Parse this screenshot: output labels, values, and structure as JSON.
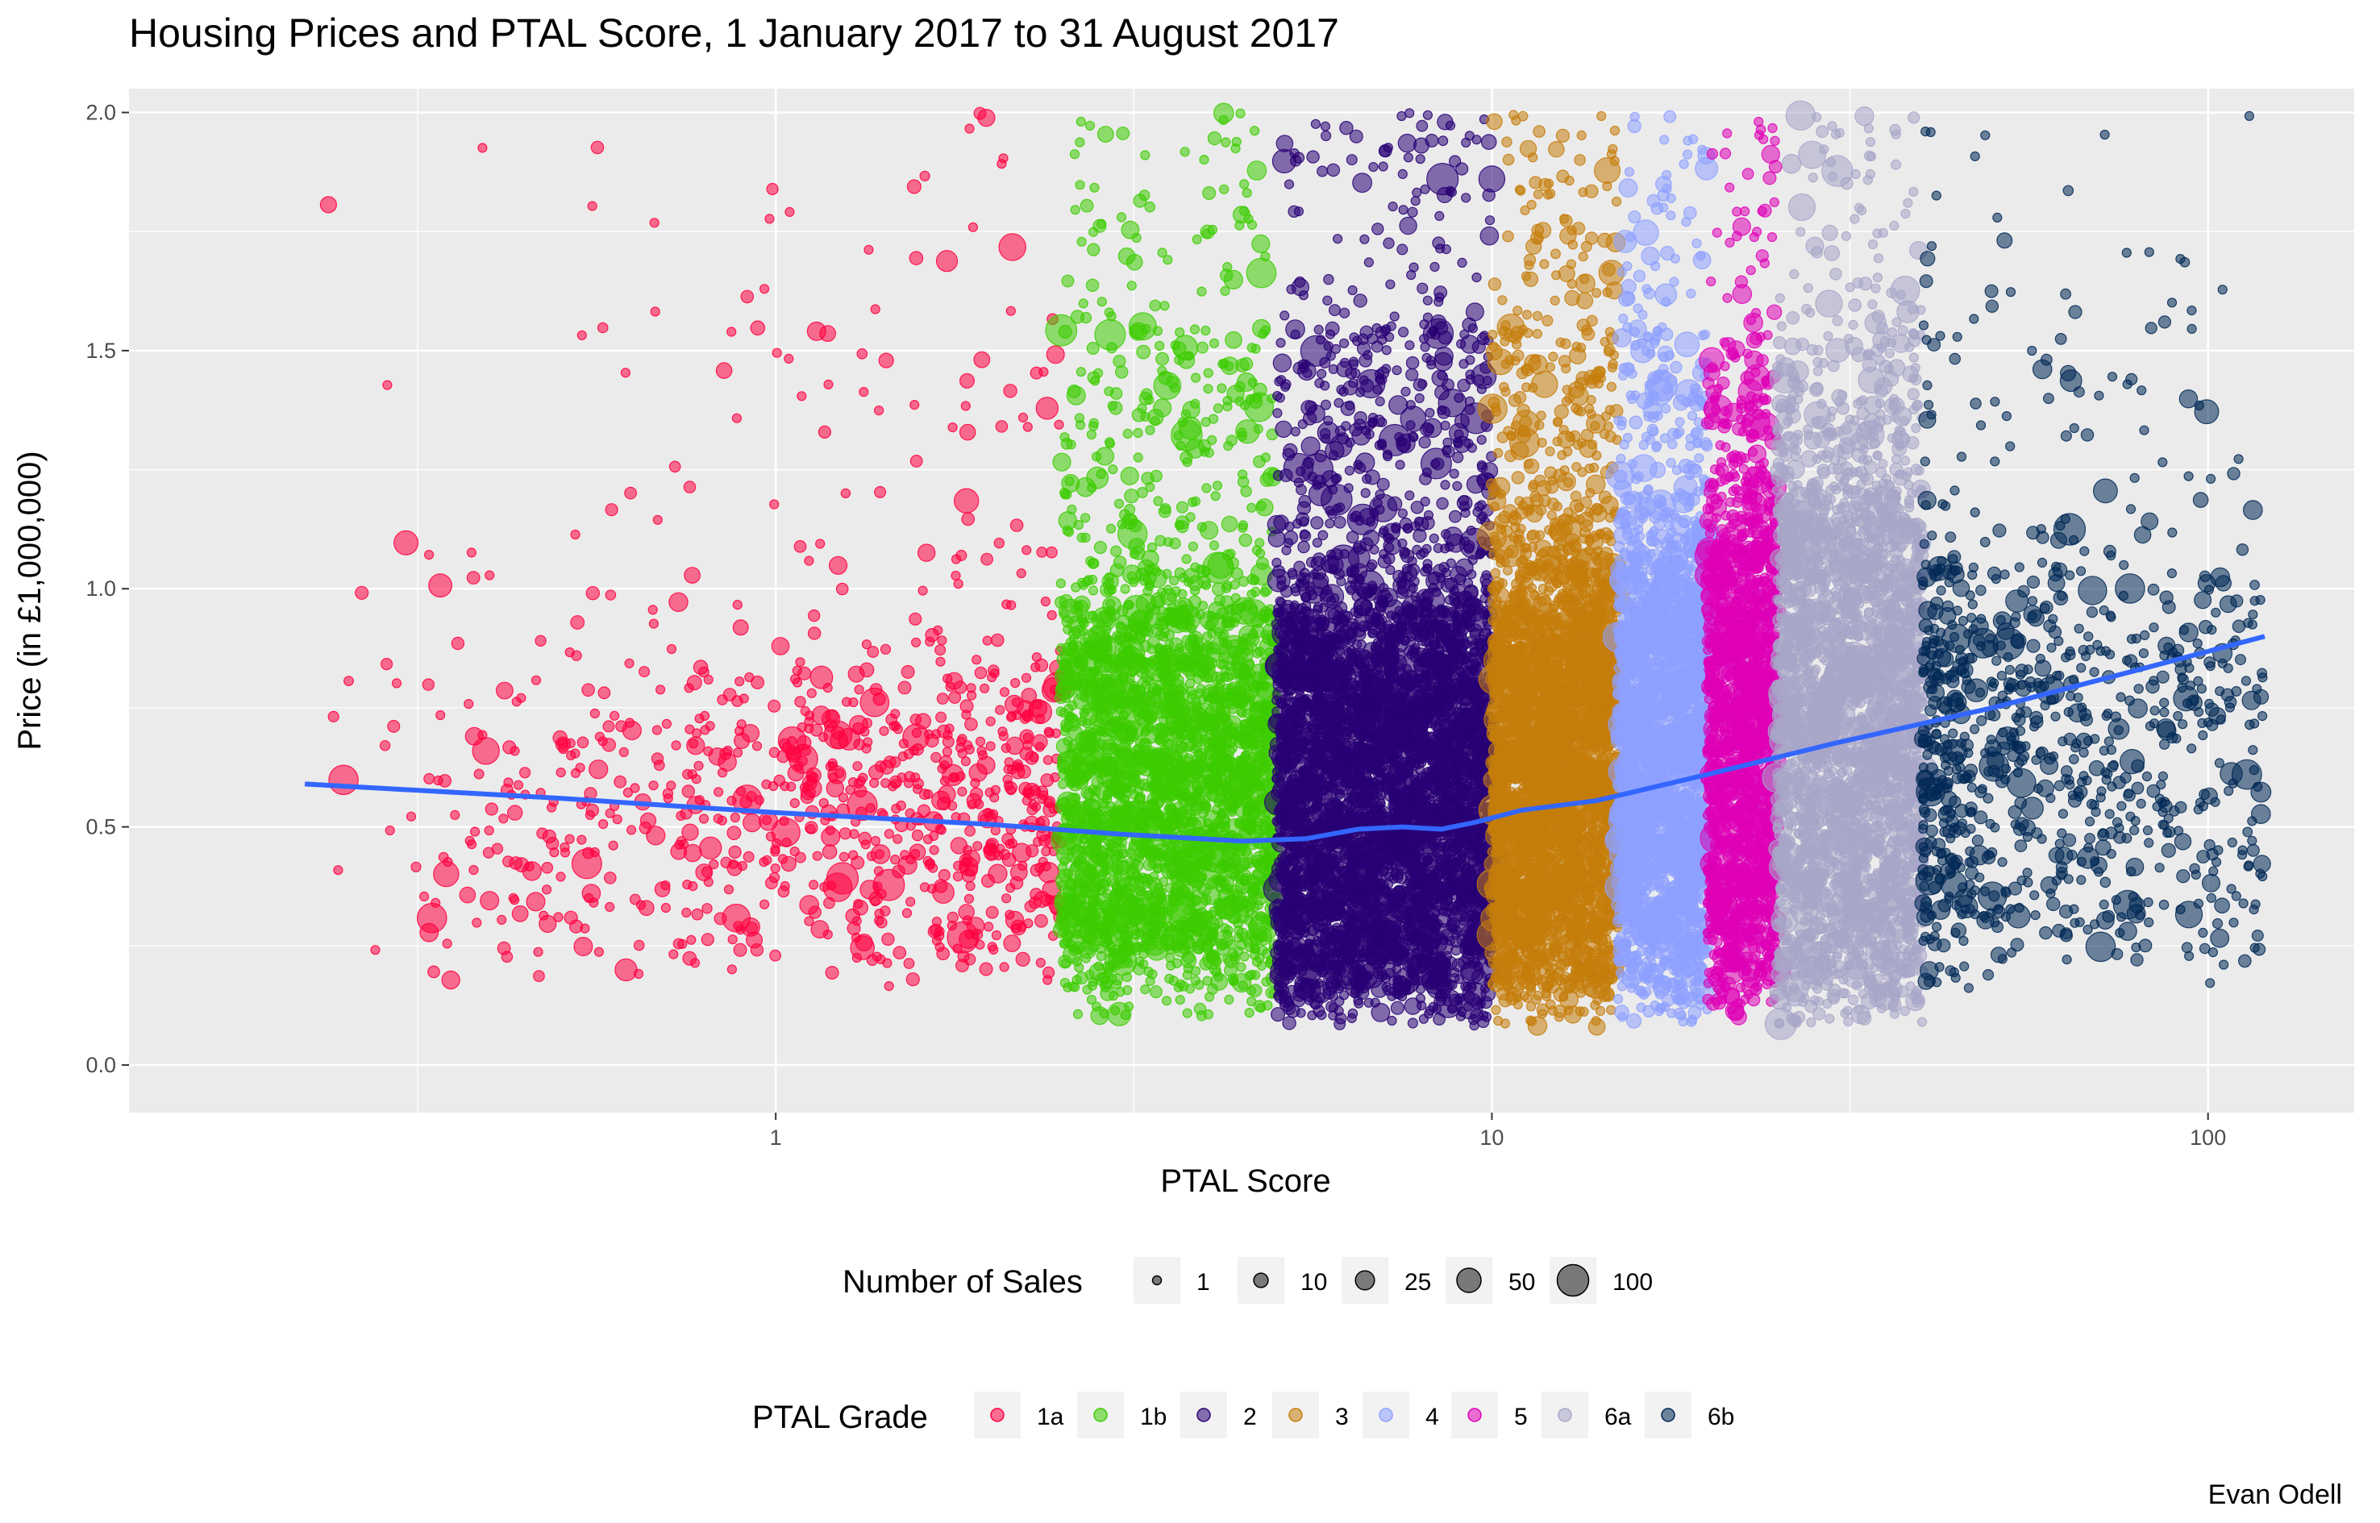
{
  "chart_data": {
    "type": "scatter",
    "title": "Housing Prices and PTAL Score, 1 January 2017 to 31 August 2017",
    "xlabel": "PTAL Score",
    "ylabel": "Price (in £1,000,000)",
    "caption": "Evan Odell",
    "x_scale": "log10",
    "xlim": [
      0.125,
      160
    ],
    "ylim": [
      -0.1,
      2.05
    ],
    "x_ticks": [
      1,
      10,
      100
    ],
    "x_tick_labels": [
      "1",
      "10",
      "100"
    ],
    "y_ticks": [
      0,
      0.5,
      1,
      1.5,
      2
    ],
    "y_tick_labels": [
      "0.0",
      "0.5",
      "1.0",
      "1.5",
      "2.0"
    ],
    "grid": true,
    "legend_position": "bottom",
    "size_legend": {
      "title": "Number of Sales",
      "items": [
        {
          "label": "1",
          "value": 1
        },
        {
          "label": "10",
          "value": 10
        },
        {
          "label": "25",
          "value": 25
        },
        {
          "label": "50",
          "value": 50
        },
        {
          "label": "100",
          "value": 100
        }
      ]
    },
    "color_legend": {
      "title": "PTAL Grade",
      "items": [
        {
          "label": "1a",
          "color": "#ff0040"
        },
        {
          "label": "1b",
          "color": "#3ccc00"
        },
        {
          "label": "2",
          "color": "#280075"
        },
        {
          "label": "3",
          "color": "#c57d0b"
        },
        {
          "label": "4",
          "color": "#8ea0ff"
        },
        {
          "label": "5",
          "color": "#df00b7"
        },
        {
          "label": "6a",
          "color": "#a8a6c8"
        },
        {
          "label": "6b",
          "color": "#002855"
        }
      ]
    },
    "series": [
      {
        "name": "1a",
        "x_range": [
          0.22,
          2.5
        ],
        "color": "#ff0040",
        "approx_points": 900,
        "y_core": [
          0.15,
          0.85
        ]
      },
      {
        "name": "1b",
        "x_range": [
          2.5,
          5.0
        ],
        "color": "#3ccc00",
        "approx_points": 2600,
        "y_core": [
          0.1,
          1.05
        ]
      },
      {
        "name": "2",
        "x_range": [
          5.0,
          10.0
        ],
        "color": "#280075",
        "approx_points": 4200,
        "y_core": [
          0.08,
          1.05
        ]
      },
      {
        "name": "3",
        "x_range": [
          10.0,
          15.0
        ],
        "color": "#c57d0b",
        "approx_points": 3000,
        "y_core": [
          0.08,
          1.1
        ]
      },
      {
        "name": "4",
        "x_range": [
          15.0,
          20.0
        ],
        "color": "#8ea0ff",
        "approx_points": 2200,
        "y_core": [
          0.08,
          1.2
        ]
      },
      {
        "name": "5",
        "x_range": [
          20.0,
          25.0
        ],
        "color": "#df00b7",
        "approx_points": 1600,
        "y_core": [
          0.1,
          1.3
        ]
      },
      {
        "name": "6a",
        "x_range": [
          25.0,
          40.0
        ],
        "color": "#a8a6c8",
        "approx_points": 2600,
        "y_core": [
          0.08,
          1.4
        ]
      },
      {
        "name": "6b",
        "x_range": [
          40.0,
          120.0
        ],
        "color": "#002855",
        "approx_points": 900,
        "y_core": [
          0.15,
          1.1
        ]
      }
    ],
    "smooth_line": {
      "color": "#3366ff",
      "points": [
        [
          0.22,
          0.59
        ],
        [
          0.5,
          0.56
        ],
        [
          1.0,
          0.53
        ],
        [
          2.0,
          0.505
        ],
        [
          3.0,
          0.485
        ],
        [
          4.5,
          0.47
        ],
        [
          5.5,
          0.475
        ],
        [
          6.5,
          0.495
        ],
        [
          7.5,
          0.5
        ],
        [
          8.5,
          0.495
        ],
        [
          9.5,
          0.51
        ],
        [
          11,
          0.535
        ],
        [
          14,
          0.555
        ],
        [
          20,
          0.61
        ],
        [
          30,
          0.675
        ],
        [
          50,
          0.75
        ],
        [
          80,
          0.83
        ],
        [
          120,
          0.9
        ]
      ]
    }
  }
}
